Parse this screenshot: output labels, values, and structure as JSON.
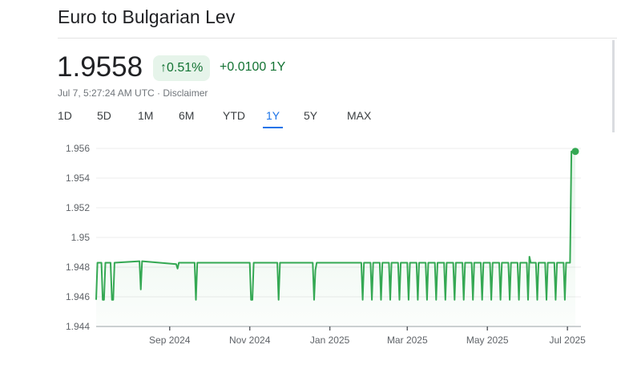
{
  "title": "Euro to Bulgarian Lev",
  "price": "1.9558",
  "badge": {
    "icon": "arrow-up-icon",
    "arrow": "↑",
    "percent": "0.51%"
  },
  "change": "+0.0100 1Y",
  "meta": "Jul 7, 5:27:24 AM UTC · Disclaimer",
  "tabs": [
    {
      "label": "1D"
    },
    {
      "label": "5D"
    },
    {
      "label": "1M"
    },
    {
      "label": "6M"
    },
    {
      "label": "YTD"
    },
    {
      "label": "1Y",
      "active": true
    },
    {
      "label": "5Y"
    },
    {
      "label": "MAX"
    }
  ],
  "colors": {
    "line": "#34a853",
    "positive": "#137333",
    "active_tab": "#1a73e8"
  },
  "chart_data": {
    "type": "line",
    "title": "",
    "xlabel": "",
    "ylabel": "",
    "ylim": [
      1.944,
      1.956
    ],
    "xlim": [
      "2024-07-07",
      "2025-07-07"
    ],
    "yticks": [
      "1.956",
      "1.954",
      "1.952",
      "1.95",
      "1.948",
      "1.946",
      "1.944"
    ],
    "ytick_values": [
      1.956,
      1.954,
      1.952,
      1.95,
      1.948,
      1.946,
      1.944
    ],
    "xticks": [
      {
        "label": "Sep 2024",
        "date": "2024-09-01"
      },
      {
        "label": "Nov 2024",
        "date": "2024-11-01"
      },
      {
        "label": "Jan 2025",
        "date": "2025-01-01"
      },
      {
        "label": "Mar 2025",
        "date": "2025-03-01"
      },
      {
        "label": "May 2025",
        "date": "2025-05-01"
      },
      {
        "label": "Jul 2025",
        "date": "2025-07-01"
      }
    ],
    "grid": true,
    "series": [
      {
        "points": [
          [
            "2024-07-07",
            1.9458
          ],
          [
            "2024-07-08",
            1.9483
          ],
          [
            "2024-07-11",
            1.9483
          ],
          [
            "2024-07-12",
            1.9458
          ],
          [
            "2024-07-13",
            1.9458
          ],
          [
            "2024-07-14",
            1.9483
          ],
          [
            "2024-07-18",
            1.9483
          ],
          [
            "2024-07-19",
            1.9458
          ],
          [
            "2024-07-20",
            1.9458
          ],
          [
            "2024-07-21",
            1.9483
          ],
          [
            "2024-08-09",
            1.9484
          ],
          [
            "2024-08-10",
            1.9465
          ],
          [
            "2024-08-11",
            1.9484
          ],
          [
            "2024-09-06",
            1.9482
          ],
          [
            "2024-09-07",
            1.9479
          ],
          [
            "2024-09-08",
            1.9483
          ],
          [
            "2024-09-20",
            1.9483
          ],
          [
            "2024-09-21",
            1.9458
          ],
          [
            "2024-09-22",
            1.9483
          ],
          [
            "2024-11-01",
            1.9483
          ],
          [
            "2024-11-02",
            1.9458
          ],
          [
            "2024-11-03",
            1.9458
          ],
          [
            "2024-11-04",
            1.9483
          ],
          [
            "2024-11-22",
            1.9483
          ],
          [
            "2024-11-23",
            1.9458
          ],
          [
            "2024-11-24",
            1.9483
          ],
          [
            "2024-12-19",
            1.9483
          ],
          [
            "2024-12-20",
            1.9458
          ],
          [
            "2024-12-21",
            1.9478
          ],
          [
            "2024-12-22",
            1.9483
          ],
          [
            "2025-01-25",
            1.9483
          ],
          [
            "2025-01-26",
            1.9458
          ],
          [
            "2025-01-27",
            1.9483
          ],
          [
            "2025-02-01",
            1.9483
          ],
          [
            "2025-02-02",
            1.9458
          ],
          [
            "2025-02-03",
            1.9483
          ],
          [
            "2025-02-08",
            1.9483
          ],
          [
            "2025-02-09",
            1.9458
          ],
          [
            "2025-02-10",
            1.9483
          ],
          [
            "2025-02-15",
            1.9483
          ],
          [
            "2025-02-16",
            1.9458
          ],
          [
            "2025-02-17",
            1.9483
          ],
          [
            "2025-02-22",
            1.9483
          ],
          [
            "2025-02-23",
            1.9458
          ],
          [
            "2025-02-24",
            1.9483
          ],
          [
            "2025-03-01",
            1.9483
          ],
          [
            "2025-03-02",
            1.9458
          ],
          [
            "2025-03-03",
            1.9483
          ],
          [
            "2025-03-08",
            1.9483
          ],
          [
            "2025-03-09",
            1.9458
          ],
          [
            "2025-03-10",
            1.9483
          ],
          [
            "2025-03-15",
            1.9483
          ],
          [
            "2025-03-16",
            1.9458
          ],
          [
            "2025-03-17",
            1.9483
          ],
          [
            "2025-03-22",
            1.9483
          ],
          [
            "2025-03-23",
            1.9458
          ],
          [
            "2025-03-24",
            1.9483
          ],
          [
            "2025-03-29",
            1.9483
          ],
          [
            "2025-03-30",
            1.9458
          ],
          [
            "2025-03-31",
            1.9483
          ],
          [
            "2025-04-05",
            1.9483
          ],
          [
            "2025-04-06",
            1.9458
          ],
          [
            "2025-04-07",
            1.9483
          ],
          [
            "2025-04-12",
            1.9483
          ],
          [
            "2025-04-13",
            1.9458
          ],
          [
            "2025-04-14",
            1.9483
          ],
          [
            "2025-04-19",
            1.9483
          ],
          [
            "2025-04-20",
            1.9458
          ],
          [
            "2025-04-21",
            1.9483
          ],
          [
            "2025-04-26",
            1.9483
          ],
          [
            "2025-04-27",
            1.9458
          ],
          [
            "2025-04-28",
            1.9483
          ],
          [
            "2025-05-03",
            1.9483
          ],
          [
            "2025-05-04",
            1.9458
          ],
          [
            "2025-05-05",
            1.9483
          ],
          [
            "2025-05-10",
            1.9483
          ],
          [
            "2025-05-11",
            1.9458
          ],
          [
            "2025-05-12",
            1.9483
          ],
          [
            "2025-05-17",
            1.9483
          ],
          [
            "2025-05-18",
            1.9458
          ],
          [
            "2025-05-19",
            1.9483
          ],
          [
            "2025-05-24",
            1.9483
          ],
          [
            "2025-05-25",
            1.9458
          ],
          [
            "2025-05-26",
            1.9483
          ],
          [
            "2025-05-31",
            1.9483
          ],
          [
            "2025-06-01",
            1.9458
          ],
          [
            "2025-06-02",
            1.9487
          ],
          [
            "2025-06-03",
            1.9483
          ],
          [
            "2025-06-07",
            1.9483
          ],
          [
            "2025-06-08",
            1.9458
          ],
          [
            "2025-06-09",
            1.9483
          ],
          [
            "2025-06-14",
            1.9483
          ],
          [
            "2025-06-15",
            1.9458
          ],
          [
            "2025-06-16",
            1.9483
          ],
          [
            "2025-06-21",
            1.9483
          ],
          [
            "2025-06-22",
            1.9458
          ],
          [
            "2025-06-23",
            1.9483
          ],
          [
            "2025-06-28",
            1.9483
          ],
          [
            "2025-06-29",
            1.9458
          ],
          [
            "2025-06-30",
            1.9483
          ],
          [
            "2025-07-03",
            1.9483
          ],
          [
            "2025-07-04",
            1.9558
          ],
          [
            "2025-07-07",
            1.9558
          ]
        ]
      }
    ]
  }
}
